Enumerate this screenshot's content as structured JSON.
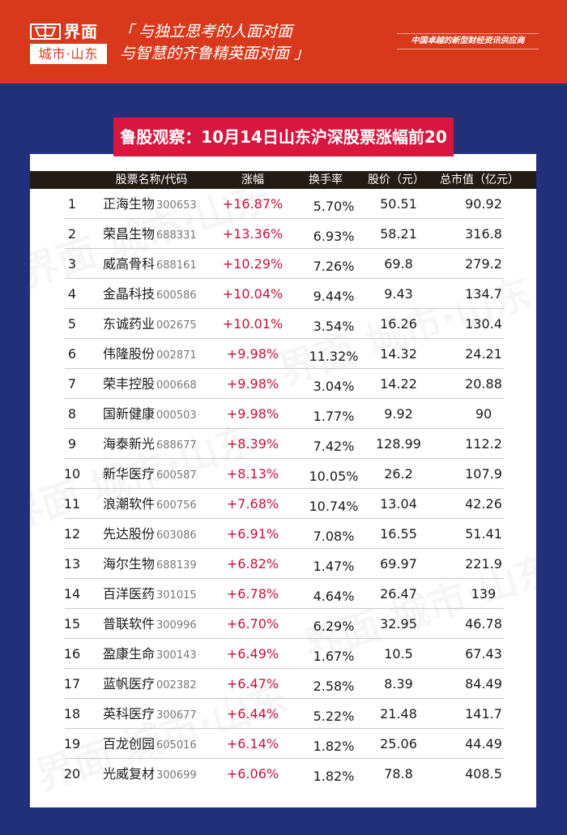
{
  "header": {
    "logo_name": "界面",
    "logo_sub": "城市·山东",
    "slogan_line1": "「 与独立思考的人面对面",
    "slogan_line2": "与智慧的齐鲁精英面对面 」",
    "tagline": "中国卓越的新型财经资讯供应商",
    "colors": {
      "banner_red": "#d8391c",
      "background_blue": "#22307a"
    }
  },
  "title": {
    "text": "鲁股观察：10月14日山东沪深股票涨幅前20",
    "color": "#d7173f"
  },
  "table": {
    "columns": {
      "rank": "",
      "name_code": "股票名称/代码",
      "change": "涨幅",
      "turnover": "换手率",
      "price": "股价（元）",
      "market_cap": "总市值（亿元）"
    },
    "rows": [
      {
        "rank": "1",
        "name": "正海生物",
        "code": "300653",
        "change": "+16.87%",
        "turnover": "5.70%",
        "price": "50.51",
        "market_cap": "90.92"
      },
      {
        "rank": "2",
        "name": "荣昌生物",
        "code": "688331",
        "change": "+13.36%",
        "turnover": "6.93%",
        "price": "58.21",
        "market_cap": "316.8"
      },
      {
        "rank": "3",
        "name": "威高骨科",
        "code": "688161",
        "change": "+10.29%",
        "turnover": "7.26%",
        "price": "69.8",
        "market_cap": "279.2"
      },
      {
        "rank": "4",
        "name": "金晶科技",
        "code": "600586",
        "change": "+10.04%",
        "turnover": "9.44%",
        "price": "9.43",
        "market_cap": "134.7"
      },
      {
        "rank": "5",
        "name": "东诚药业",
        "code": "002675",
        "change": "+10.01%",
        "turnover": "3.54%",
        "price": "16.26",
        "market_cap": "130.4"
      },
      {
        "rank": "6",
        "name": "伟隆股份",
        "code": "002871",
        "change": "+9.98%",
        "turnover": "11.32%",
        "price": "14.32",
        "market_cap": "24.21"
      },
      {
        "rank": "7",
        "name": "荣丰控股",
        "code": "000668",
        "change": "+9.98%",
        "turnover": "3.04%",
        "price": "14.22",
        "market_cap": "20.88"
      },
      {
        "rank": "8",
        "name": "国新健康",
        "code": "000503",
        "change": "+9.98%",
        "turnover": "1.77%",
        "price": "9.92",
        "market_cap": "90"
      },
      {
        "rank": "9",
        "name": "海泰新光",
        "code": "688677",
        "change": "+8.39%",
        "turnover": "7.42%",
        "price": "128.99",
        "market_cap": "112.2"
      },
      {
        "rank": "10",
        "name": "新华医疗",
        "code": "600587",
        "change": "+8.13%",
        "turnover": "10.05%",
        "price": "26.2",
        "market_cap": "107.9"
      },
      {
        "rank": "11",
        "name": "浪潮软件",
        "code": "600756",
        "change": "+7.68%",
        "turnover": "10.74%",
        "price": "13.04",
        "market_cap": "42.26"
      },
      {
        "rank": "12",
        "name": "先达股份",
        "code": "603086",
        "change": "+6.91%",
        "turnover": "7.08%",
        "price": "16.55",
        "market_cap": "51.41"
      },
      {
        "rank": "13",
        "name": "海尔生物",
        "code": "688139",
        "change": "+6.82%",
        "turnover": "1.47%",
        "price": "69.97",
        "market_cap": "221.9"
      },
      {
        "rank": "14",
        "name": "百洋医药",
        "code": "301015",
        "change": "+6.78%",
        "turnover": "4.64%",
        "price": "26.47",
        "market_cap": "139"
      },
      {
        "rank": "15",
        "name": "普联软件",
        "code": "300996",
        "change": "+6.70%",
        "turnover": "6.29%",
        "price": "32.95",
        "market_cap": "46.78"
      },
      {
        "rank": "16",
        "name": "盈康生命",
        "code": "300143",
        "change": "+6.49%",
        "turnover": "1.67%",
        "price": "10.5",
        "market_cap": "67.43"
      },
      {
        "rank": "17",
        "name": "蓝帆医疗",
        "code": "002382",
        "change": "+6.47%",
        "turnover": "2.58%",
        "price": "8.39",
        "market_cap": "84.49"
      },
      {
        "rank": "18",
        "name": "英科医疗",
        "code": "300677",
        "change": "+6.44%",
        "turnover": "5.22%",
        "price": "21.48",
        "market_cap": "141.7"
      },
      {
        "rank": "19",
        "name": "百龙创园",
        "code": "605016",
        "change": "+6.14%",
        "turnover": "1.82%",
        "price": "25.06",
        "market_cap": "44.49"
      },
      {
        "rank": "20",
        "name": "光威复材",
        "code": "300699",
        "change": "+6.06%",
        "turnover": "1.82%",
        "price": "78.8",
        "market_cap": "408.5"
      }
    ],
    "colors": {
      "header_bg": "#231b15",
      "change_text": "#c0143c"
    }
  },
  "watermark": {
    "text": "界面 城市·山东"
  }
}
